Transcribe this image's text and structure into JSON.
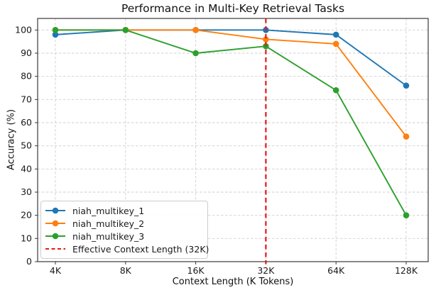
{
  "chart_data": {
    "type": "line",
    "title": "Performance in Multi-Key Retrieval Tasks",
    "xlabel": "Context Length (K Tokens)",
    "ylabel": "Accuracy (%)",
    "categories": [
      "4K",
      "8K",
      "16K",
      "32K",
      "64K",
      "128K"
    ],
    "x_scale": "log2",
    "ylim": [
      0,
      105
    ],
    "yticks": [
      0,
      10,
      20,
      30,
      40,
      50,
      60,
      70,
      80,
      90,
      100
    ],
    "grid": true,
    "grid_style": "dashed",
    "legend_position": "lower-left",
    "series": [
      {
        "name": "niah_multikey_1",
        "color": "#1f77b4",
        "values": [
          98,
          100,
          100,
          100,
          98,
          76
        ]
      },
      {
        "name": "niah_multikey_2",
        "color": "#ff7f0e",
        "values": [
          100,
          100,
          100,
          96,
          94,
          54
        ]
      },
      {
        "name": "niah_multikey_3",
        "color": "#2ca02c",
        "values": [
          100,
          100,
          90,
          93,
          74,
          20
        ]
      }
    ],
    "vline": {
      "label": "Effective Context Length (32K)",
      "x_category": "32K",
      "color": "#e31a1a",
      "style": "dashed"
    },
    "colors": {
      "background": "#ffffff",
      "gridline": "#cfcfcf",
      "axis": "#3a3a3a",
      "text": "#1a1a1a"
    }
  }
}
